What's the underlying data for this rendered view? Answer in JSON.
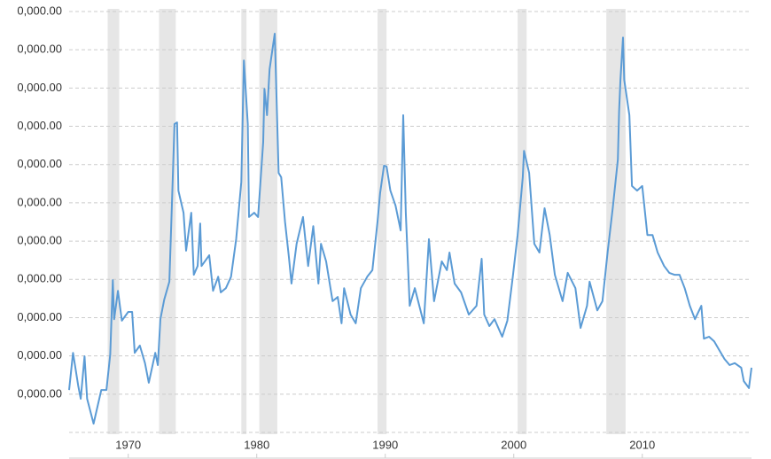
{
  "chart_data": {
    "type": "line",
    "xlim": [
      1965.4,
      2018.5
    ],
    "xticks": [
      1970,
      1980,
      1990,
      2000,
      2010
    ],
    "ylim": [
      0,
      110000
    ],
    "yticks": [
      {
        "value": 10000,
        "label": "0,000.00"
      },
      {
        "value": 20000,
        "label": "0,000.00"
      },
      {
        "value": 30000,
        "label": "0,000.00"
      },
      {
        "value": 40000,
        "label": "0,000.00"
      },
      {
        "value": 50000,
        "label": "0,000.00"
      },
      {
        "value": 60000,
        "label": "0,000.00"
      },
      {
        "value": 70000,
        "label": "0,000.00"
      },
      {
        "value": 80000,
        "label": "0,000.00"
      },
      {
        "value": 90000,
        "label": "0,000.00"
      },
      {
        "value": 100000,
        "label": "0,000.00"
      },
      {
        "value": 110000,
        "label": "0,000.00"
      }
    ],
    "grid": true,
    "shaded_periods": [
      [
        1968.4,
        1969.3
      ],
      [
        1972.4,
        1973.7
      ],
      [
        1978.8,
        1979.2
      ],
      [
        1980.2,
        1981.6
      ],
      [
        1989.4,
        1990.1
      ],
      [
        2000.3,
        2001.0
      ],
      [
        2007.2,
        2008.7
      ]
    ],
    "shade_color": "#e6e6e6",
    "series": [
      {
        "color": "#5b9bd5",
        "x": [
          1965.4,
          1965.7,
          1966.1,
          1966.3,
          1966.6,
          1966.8,
          1967.3,
          1967.9,
          1968.3,
          1968.6,
          1968.8,
          1968.9,
          1969.2,
          1969.5,
          1970.0,
          1970.3,
          1970.5,
          1970.9,
          1971.3,
          1971.6,
          1972.1,
          1972.3,
          1972.5,
          1972.8,
          1973.2,
          1973.4,
          1973.6,
          1973.8,
          1973.9,
          1974.3,
          1974.5,
          1974.9,
          1975.1,
          1975.4,
          1975.6,
          1975.7,
          1976.3,
          1976.6,
          1977.0,
          1977.2,
          1977.6,
          1978.0,
          1978.4,
          1978.8,
          1979.0,
          1979.3,
          1979.4,
          1979.8,
          1980.1,
          1980.5,
          1980.6,
          1980.8,
          1981.0,
          1981.4,
          1981.5,
          1981.7,
          1981.9,
          1982.2,
          1982.5,
          1982.7,
          1983.1,
          1983.6,
          1984.0,
          1984.4,
          1984.8,
          1985.0,
          1985.4,
          1985.9,
          1986.3,
          1986.6,
          1986.8,
          1987.3,
          1987.7,
          1988.1,
          1988.6,
          1989.0,
          1989.4,
          1989.6,
          1989.9,
          1990.1,
          1990.4,
          1990.8,
          1991.2,
          1991.4,
          1991.6,
          1991.9,
          1992.3,
          1993.0,
          1993.4,
          1993.8,
          1994.4,
          1994.8,
          1995.0,
          1995.4,
          1995.9,
          1996.5,
          1997.1,
          1997.5,
          1997.7,
          1998.1,
          1998.5,
          1999.1,
          1999.5,
          1999.9,
          2000.3,
          2000.7,
          2000.8,
          2001.2,
          2001.6,
          2002.0,
          2002.4,
          2002.8,
          2003.2,
          2003.8,
          2004.2,
          2004.8,
          2005.2,
          2005.7,
          2005.9,
          2006.5,
          2006.9,
          2007.3,
          2007.7,
          2008.1,
          2008.2,
          2008.3,
          2008.5,
          2008.6,
          2009.0,
          2009.2,
          2009.6,
          2010.0,
          2010.4,
          2010.8,
          2011.2,
          2011.7,
          2012.1,
          2012.5,
          2012.9,
          2013.3,
          2013.7,
          2014.1,
          2014.6,
          2014.8,
          2015.2,
          2015.6,
          2016.0,
          2016.4,
          2016.8,
          2017.2,
          2017.7,
          2017.9,
          2018.3,
          2018.5
        ],
        "values": [
          11100,
          20800,
          12300,
          8800,
          19900,
          8800,
          2300,
          11100,
          11100,
          20400,
          39800,
          29600,
          37000,
          29200,
          31500,
          31500,
          20800,
          22700,
          18100,
          13000,
          20800,
          17600,
          29600,
          34700,
          39400,
          59700,
          80600,
          81000,
          63200,
          57400,
          47500,
          57400,
          41200,
          43500,
          54600,
          43500,
          46300,
          37000,
          40700,
          36600,
          37700,
          40700,
          50500,
          65500,
          97200,
          80600,
          56300,
          57400,
          56300,
          75900,
          89800,
          82900,
          94900,
          104200,
          92100,
          67800,
          66700,
          55100,
          45800,
          38900,
          49300,
          56300,
          43500,
          53900,
          38900,
          49300,
          44700,
          34300,
          35400,
          28500,
          37700,
          30800,
          28500,
          37700,
          40700,
          42400,
          55100,
          62500,
          69700,
          69500,
          63200,
          59300,
          52800,
          82900,
          57400,
          33100,
          37700,
          28500,
          50500,
          34300,
          44700,
          42400,
          47000,
          38900,
          36600,
          30800,
          33100,
          45400,
          30800,
          27800,
          29600,
          25000,
          29200,
          40000,
          51600,
          66700,
          73600,
          67800,
          49300,
          47000,
          58600,
          51600,
          41200,
          34300,
          41700,
          37700,
          27300,
          33100,
          39400,
          31900,
          34300,
          47000,
          58600,
          71300,
          84000,
          92100,
          103200,
          92100,
          82900,
          64400,
          63200,
          64400,
          51600,
          51600,
          47000,
          43500,
          41700,
          41200,
          41200,
          37700,
          33100,
          29600,
          33100,
          24500,
          25000,
          23800,
          21500,
          19200,
          17600,
          18100,
          16900,
          13400,
          11600,
          16900
        ]
      }
    ]
  }
}
